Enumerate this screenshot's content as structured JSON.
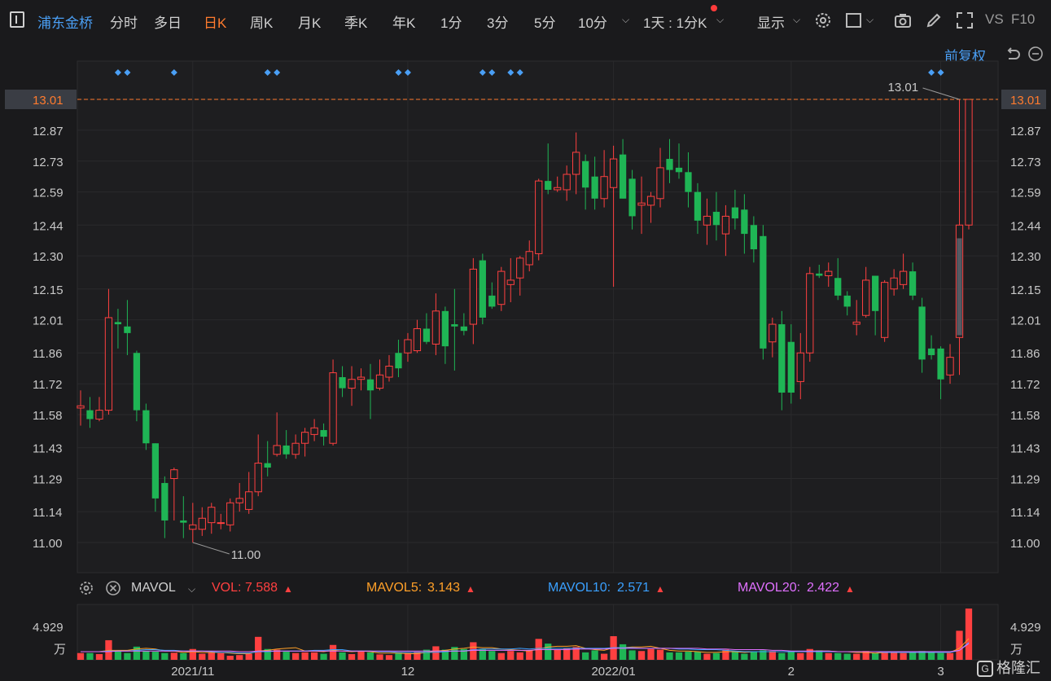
{
  "toolbar": {
    "stock_name": "浦东金桥",
    "items": [
      "分时",
      "多日",
      "日K",
      "周K",
      "月K",
      "季K",
      "年K",
      "1分",
      "3分",
      "5分",
      "10分"
    ],
    "active": "日K",
    "interval_select": "1天 : 1分K",
    "display_label": "显示",
    "vs_label": "VS",
    "f10_label": "F10",
    "restore_label": "前复权"
  },
  "colors": {
    "up": "#ff4040",
    "down": "#1fb555",
    "accent": "#ff7b2e",
    "blue": "#4a9ff5",
    "ma5": "#ffa028",
    "ma10": "#3aa0ff",
    "ma20": "#e070ff"
  },
  "volume_header": {
    "indicator": "MAVOL",
    "vol_label": "VOL:",
    "vol_value": "7.588",
    "ma5_label": "MAVOL5:",
    "ma5_value": "3.143",
    "ma10_label": "MAVOL10:",
    "ma10_value": "2.571",
    "ma20_label": "MAVOL20:",
    "ma20_value": "2.422"
  },
  "watermark": "格隆汇",
  "chart_data": {
    "type": "candlestick",
    "y_ticks": [
      "13.01",
      "12.87",
      "12.73",
      "12.59",
      "12.44",
      "12.30",
      "12.15",
      "12.01",
      "11.86",
      "11.72",
      "11.58",
      "11.43",
      "11.29",
      "11.14",
      "11.00"
    ],
    "ylim": [
      10.87,
      13.12
    ],
    "current_price": "13.01",
    "max_label": "13.01",
    "min_label": "11.00",
    "x_labels": [
      {
        "index": 12,
        "label": "2021/11"
      },
      {
        "index": 35,
        "label": "12"
      },
      {
        "index": 57,
        "label": "2022/01"
      },
      {
        "index": 76,
        "label": "2"
      },
      {
        "index": 92,
        "label": "3"
      }
    ],
    "vol_y_label": "4.929",
    "vol_unit": "万",
    "vol_ylim": [
      0,
      8.2
    ],
    "event_markers": [
      4,
      5,
      10,
      20,
      21,
      34,
      35,
      43,
      44,
      46,
      47,
      91,
      92
    ],
    "candles": [
      [
        11.61,
        11.62,
        11.69,
        11.53
      ],
      [
        11.6,
        11.56,
        11.66,
        11.52
      ],
      [
        11.56,
        11.6,
        11.66,
        11.55
      ],
      [
        11.6,
        12.02,
        12.15,
        11.58
      ],
      [
        12.0,
        11.99,
        12.06,
        11.88
      ],
      [
        11.98,
        11.95,
        12.1,
        11.85
      ],
      [
        11.86,
        11.6,
        11.87,
        11.55
      ],
      [
        11.6,
        11.45,
        11.63,
        11.42
      ],
      [
        11.45,
        11.2,
        11.45,
        11.14
      ],
      [
        11.27,
        11.1,
        11.3,
        11.02
      ],
      [
        11.29,
        11.33,
        11.34,
        11.1
      ],
      [
        11.1,
        11.09,
        11.21,
        11.02
      ],
      [
        11.06,
        11.08,
        11.18,
        11.0
      ],
      [
        11.06,
        11.11,
        11.16,
        11.03
      ],
      [
        11.09,
        11.16,
        11.18,
        11.04
      ],
      [
        11.09,
        11.09,
        11.13,
        11.06
      ],
      [
        11.08,
        11.18,
        11.2,
        11.05
      ],
      [
        11.18,
        11.2,
        11.27,
        11.14
      ],
      [
        11.15,
        11.23,
        11.32,
        11.13
      ],
      [
        11.23,
        11.36,
        11.49,
        11.21
      ],
      [
        11.36,
        11.34,
        11.46,
        11.3
      ],
      [
        11.4,
        11.44,
        11.59,
        11.39
      ],
      [
        11.44,
        11.4,
        11.51,
        11.38
      ],
      [
        11.4,
        11.45,
        11.49,
        11.38
      ],
      [
        11.45,
        11.5,
        11.52,
        11.39
      ],
      [
        11.49,
        11.52,
        11.56,
        11.46
      ],
      [
        11.51,
        11.48,
        11.54,
        11.44
      ],
      [
        11.45,
        11.77,
        11.83,
        11.44
      ],
      [
        11.75,
        11.7,
        11.8,
        11.66
      ],
      [
        11.7,
        11.74,
        11.8,
        11.62
      ],
      [
        11.74,
        11.75,
        11.79,
        11.69
      ],
      [
        11.74,
        11.69,
        11.81,
        11.56
      ],
      [
        11.7,
        11.76,
        11.83,
        11.69
      ],
      [
        11.75,
        11.8,
        11.85,
        11.73
      ],
      [
        11.86,
        11.79,
        11.92,
        11.75
      ],
      [
        11.86,
        11.92,
        11.95,
        11.82
      ],
      [
        11.87,
        11.97,
        12.01,
        11.86
      ],
      [
        11.97,
        11.91,
        12.04,
        11.9
      ],
      [
        11.9,
        12.05,
        12.13,
        11.85
      ],
      [
        12.05,
        11.89,
        12.07,
        11.81
      ],
      [
        11.99,
        11.98,
        12.15,
        11.78
      ],
      [
        11.98,
        11.96,
        12.04,
        11.94
      ],
      [
        11.99,
        12.24,
        12.29,
        11.9
      ],
      [
        12.28,
        12.02,
        12.31,
        11.99
      ],
      [
        12.12,
        12.07,
        12.18,
        12.06
      ],
      [
        12.08,
        12.23,
        12.25,
        12.05
      ],
      [
        12.17,
        12.19,
        12.29,
        12.09
      ],
      [
        12.2,
        12.29,
        12.3,
        12.12
      ],
      [
        12.26,
        12.32,
        12.37,
        12.23
      ],
      [
        12.31,
        12.64,
        12.65,
        12.28
      ],
      [
        12.64,
        12.6,
        12.81,
        12.58
      ],
      [
        12.6,
        12.61,
        12.66,
        12.59
      ],
      [
        12.6,
        12.67,
        12.71,
        12.55
      ],
      [
        12.67,
        12.77,
        12.86,
        12.58
      ],
      [
        12.73,
        12.61,
        12.76,
        12.51
      ],
      [
        12.66,
        12.56,
        12.75,
        12.51
      ],
      [
        12.56,
        12.66,
        12.78,
        12.52
      ],
      [
        12.61,
        12.74,
        12.8,
        12.16
      ],
      [
        12.76,
        12.56,
        12.83,
        12.56
      ],
      [
        12.65,
        12.48,
        12.69,
        12.42
      ],
      [
        12.53,
        12.54,
        12.66,
        12.4
      ],
      [
        12.53,
        12.57,
        12.59,
        12.45
      ],
      [
        12.56,
        12.7,
        12.79,
        12.52
      ],
      [
        12.74,
        12.69,
        12.83,
        12.63
      ],
      [
        12.7,
        12.68,
        12.81,
        12.65
      ],
      [
        12.68,
        12.59,
        12.77,
        12.52
      ],
      [
        12.59,
        12.46,
        12.63,
        12.4
      ],
      [
        12.44,
        12.48,
        12.56,
        12.35
      ],
      [
        12.5,
        12.44,
        12.59,
        12.37
      ],
      [
        12.4,
        12.48,
        12.53,
        12.3
      ],
      [
        12.52,
        12.47,
        12.6,
        12.42
      ],
      [
        12.51,
        12.4,
        12.58,
        12.31
      ],
      [
        12.44,
        12.33,
        12.48,
        12.27
      ],
      [
        12.39,
        11.88,
        12.44,
        11.83
      ],
      [
        11.91,
        11.99,
        12.02,
        11.84
      ],
      [
        11.99,
        11.68,
        12.05,
        11.6
      ],
      [
        11.91,
        11.68,
        11.99,
        11.63
      ],
      [
        11.73,
        11.86,
        11.95,
        11.65
      ],
      [
        11.86,
        12.22,
        12.25,
        11.82
      ],
      [
        12.22,
        12.21,
        12.26,
        12.2
      ],
      [
        12.21,
        12.23,
        12.27,
        12.16
      ],
      [
        12.2,
        12.12,
        12.29,
        12.1
      ],
      [
        12.12,
        12.07,
        12.14,
        12.03
      ],
      [
        11.99,
        12.0,
        12.1,
        11.94
      ],
      [
        12.03,
        12.19,
        12.25,
        12.02
      ],
      [
        12.21,
        12.05,
        12.21,
        11.94
      ],
      [
        11.93,
        12.18,
        12.19,
        11.91
      ],
      [
        12.15,
        12.2,
        12.24,
        12.12
      ],
      [
        12.17,
        12.23,
        12.31,
        12.15
      ],
      [
        12.23,
        12.12,
        12.27,
        12.1
      ],
      [
        12.07,
        11.83,
        12.11,
        11.77
      ],
      [
        11.88,
        11.85,
        11.94,
        11.83
      ],
      [
        11.88,
        11.74,
        11.89,
        11.65
      ],
      [
        11.76,
        11.84,
        11.9,
        11.72
      ],
      [
        11.93,
        12.44,
        13.01,
        11.76
      ],
      [
        12.44,
        13.01,
        13.01,
        12.42
      ]
    ],
    "volumes": [
      1.0,
      1.0,
      0.85,
      2.9,
      1.25,
      1.0,
      1.95,
      1.3,
      1.2,
      1.0,
      1.05,
      1.0,
      1.6,
      0.9,
      1.1,
      1.0,
      0.6,
      0.7,
      0.9,
      3.4,
      1.6,
      1.5,
      1.2,
      1.0,
      1.1,
      1.1,
      0.9,
      2.2,
      1.1,
      0.85,
      1.3,
      1.1,
      0.8,
      0.7,
      1.0,
      1.0,
      1.2,
      1.5,
      2.0,
      1.5,
      1.9,
      1.6,
      2.6,
      1.6,
      1.3,
      1.0,
      1.3,
      1.1,
      1.4,
      3.1,
      2.4,
      1.5,
      1.7,
      1.9,
      1.1,
      1.4,
      0.9,
      3.5,
      2.3,
      1.4,
      1.3,
      1.6,
      1.5,
      1.1,
      1.1,
      1.2,
      1.2,
      0.9,
      1.0,
      1.5,
      1.2,
      0.9,
      1.2,
      1.4,
      1.3,
      1.0,
      1.3,
      1.0,
      1.6,
      1.4,
      1.0,
      1.0,
      0.9,
      0.9,
      1.3,
      1.0,
      1.1,
      1.2,
      1.0,
      1.1,
      1.3,
      1.1,
      1.0,
      1.0,
      4.3,
      7.588
    ],
    "mavol5": [
      1.2,
      1.2,
      1.2,
      1.4,
      1.4,
      1.4,
      1.6,
      1.7,
      1.6,
      1.3,
      1.3,
      1.1,
      1.2,
      1.1,
      1.1,
      1.1,
      1.0,
      0.9,
      0.9,
      1.3,
      1.4,
      1.6,
      1.7,
      1.8,
      1.3,
      1.3,
      1.2,
      1.4,
      1.3,
      1.2,
      1.3,
      1.2,
      1.0,
      1.0,
      1.0,
      0.9,
      0.9,
      1.1,
      1.3,
      1.4,
      1.6,
      1.7,
      1.9,
      1.8,
      1.8,
      1.6,
      1.5,
      1.4,
      1.3,
      1.6,
      1.9,
      2.0,
      2.0,
      2.1,
      1.7,
      1.5,
      1.4,
      1.8,
      1.8,
      1.9,
      1.9,
      2.0,
      1.7,
      1.4,
      1.3,
      1.3,
      1.2,
      1.1,
      1.1,
      1.2,
      1.2,
      1.1,
      1.2,
      1.2,
      1.2,
      1.2,
      1.2,
      1.2,
      1.3,
      1.3,
      1.3,
      1.2,
      1.2,
      1.1,
      1.1,
      1.0,
      1.1,
      1.1,
      1.1,
      1.1,
      1.1,
      1.1,
      1.1,
      1.1,
      1.7,
      3.143
    ],
    "mavol10": [
      1.2,
      1.2,
      1.2,
      1.3,
      1.3,
      1.3,
      1.4,
      1.5,
      1.5,
      1.4,
      1.4,
      1.3,
      1.3,
      1.3,
      1.2,
      1.1,
      1.1,
      1.0,
      1.0,
      1.2,
      1.2,
      1.3,
      1.3,
      1.3,
      1.3,
      1.4,
      1.4,
      1.5,
      1.5,
      1.3,
      1.3,
      1.3,
      1.2,
      1.2,
      1.1,
      1.1,
      1.1,
      1.1,
      1.1,
      1.2,
      1.3,
      1.3,
      1.5,
      1.6,
      1.6,
      1.6,
      1.6,
      1.7,
      1.6,
      1.7,
      1.7,
      1.7,
      1.7,
      1.7,
      1.7,
      1.7,
      1.7,
      1.8,
      1.8,
      1.8,
      1.7,
      1.7,
      1.7,
      1.7,
      1.6,
      1.6,
      1.5,
      1.5,
      1.5,
      1.4,
      1.3,
      1.2,
      1.2,
      1.2,
      1.2,
      1.2,
      1.2,
      1.2,
      1.2,
      1.2,
      1.2,
      1.2,
      1.2,
      1.2,
      1.2,
      1.2,
      1.1,
      1.1,
      1.1,
      1.1,
      1.1,
      1.1,
      1.1,
      1.1,
      1.4,
      2.571
    ],
    "mavol20": [
      1.2,
      1.2,
      1.2,
      1.2,
      1.3,
      1.3,
      1.3,
      1.3,
      1.3,
      1.3,
      1.3,
      1.3,
      1.3,
      1.3,
      1.3,
      1.3,
      1.3,
      1.2,
      1.2,
      1.3,
      1.3,
      1.3,
      1.3,
      1.3,
      1.3,
      1.3,
      1.3,
      1.3,
      1.3,
      1.3,
      1.3,
      1.3,
      1.3,
      1.3,
      1.3,
      1.3,
      1.3,
      1.3,
      1.3,
      1.3,
      1.3,
      1.3,
      1.4,
      1.4,
      1.4,
      1.4,
      1.4,
      1.4,
      1.4,
      1.5,
      1.5,
      1.5,
      1.5,
      1.6,
      1.6,
      1.6,
      1.6,
      1.7,
      1.7,
      1.7,
      1.7,
      1.7,
      1.7,
      1.7,
      1.7,
      1.7,
      1.7,
      1.6,
      1.6,
      1.6,
      1.5,
      1.5,
      1.5,
      1.5,
      1.4,
      1.4,
      1.3,
      1.3,
      1.3,
      1.3,
      1.3,
      1.2,
      1.2,
      1.2,
      1.2,
      1.2,
      1.2,
      1.2,
      1.2,
      1.2,
      1.2,
      1.2,
      1.2,
      1.2,
      1.4,
      2.422
    ]
  }
}
